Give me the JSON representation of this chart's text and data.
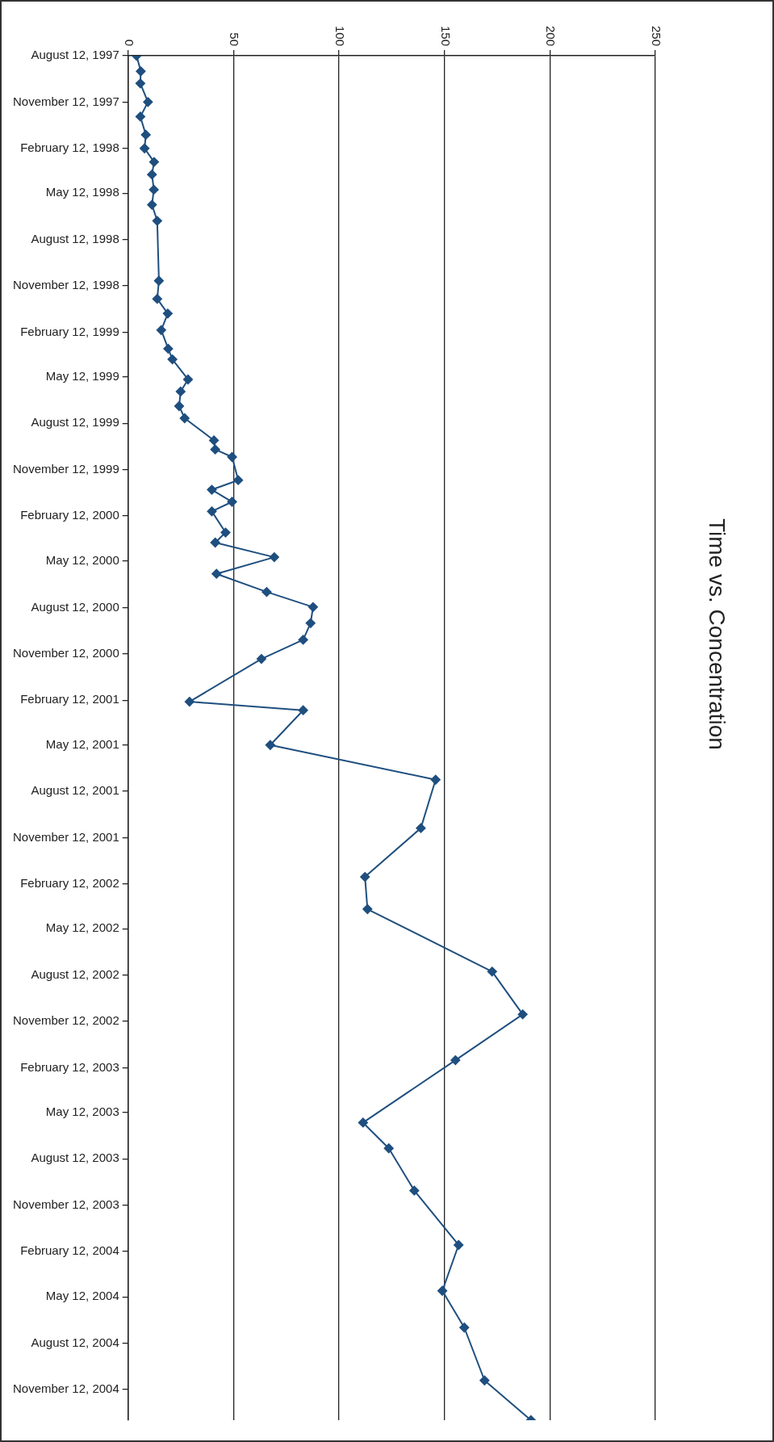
{
  "chart_data": {
    "type": "line",
    "orientation": "horizontal",
    "title": "Time vs. Concentration",
    "x": [
      "1997-08-12",
      "1997-09-12",
      "1997-10-06",
      "1997-11-12",
      "1997-12-11",
      "1998-01-16",
      "1998-02-12",
      "1998-03-11",
      "1998-04-05",
      "1998-05-05",
      "1998-06-04",
      "1998-07-06",
      "1998-11-02",
      "1998-12-08",
      "1999-01-06",
      "1999-02-08",
      "1999-03-17",
      "1999-04-07",
      "1999-05-17",
      "1999-06-10",
      "1999-07-09",
      "1999-08-02",
      "1999-09-15",
      "1999-10-03",
      "1999-10-18",
      "1999-12-03",
      "1999-12-22",
      "2000-01-15",
      "2000-02-03",
      "2000-03-16",
      "2000-04-05",
      "2000-05-04",
      "2000-06-06",
      "2000-07-12",
      "2000-08-11",
      "2000-09-12",
      "2000-10-15",
      "2000-11-22",
      "2001-02-15",
      "2001-03-04",
      "2001-05-12",
      "2001-07-20",
      "2001-10-24",
      "2002-01-29",
      "2002-04-03",
      "2002-08-05",
      "2002-10-29",
      "2003-01-28",
      "2003-06-01",
      "2003-07-22",
      "2003-10-14",
      "2004-01-30",
      "2004-04-30",
      "2004-07-12",
      "2004-10-25",
      "2005-01-12"
    ],
    "values": [
      4,
      6,
      5.8,
      9.4,
      5.8,
      8.4,
      7.8,
      12.3,
      11.3,
      12.2,
      11.3,
      13.8,
      14.6,
      13.8,
      18.8,
      15.7,
      19,
      21,
      28.4,
      24.9,
      24.2,
      26.8,
      40.7,
      41.3,
      49.3,
      52.2,
      39.7,
      49.3,
      39.7,
      46.2,
      41.3,
      69.3,
      41.9,
      65.7,
      87.7,
      86.5,
      83,
      63.2,
      29.1,
      83,
      67.4,
      145.8,
      138.8,
      112.3,
      113.5,
      172.6,
      187.1,
      155.2,
      111.4,
      123.6,
      135.7,
      156.7,
      149,
      159.4,
      169,
      191
    ],
    "color": "#1f4f7f",
    "marker": "diamond",
    "xlim": [
      0,
      250
    ],
    "xticks": [
      0,
      50,
      100,
      150,
      200,
      250
    ],
    "ylim": [
      "2005-01-12",
      "1997-08-12"
    ],
    "yticks": [
      {
        "value": "1997-08-12",
        "label": "August 12, 1997"
      },
      {
        "value": "1997-11-12",
        "label": "November 12, 1997"
      },
      {
        "value": "1998-02-12",
        "label": "February 12, 1998"
      },
      {
        "value": "1998-05-12",
        "label": "May 12, 1998"
      },
      {
        "value": "1998-08-12",
        "label": "August 12, 1998"
      },
      {
        "value": "1998-11-12",
        "label": "November 12, 1998"
      },
      {
        "value": "1999-02-12",
        "label": "February 12, 1999"
      },
      {
        "value": "1999-05-12",
        "label": "May 12, 1999"
      },
      {
        "value": "1999-08-12",
        "label": "August 12, 1999"
      },
      {
        "value": "1999-11-12",
        "label": "November 12, 1999"
      },
      {
        "value": "2000-02-12",
        "label": "February 12, 2000"
      },
      {
        "value": "2000-05-12",
        "label": "May 12, 2000"
      },
      {
        "value": "2000-08-12",
        "label": "August 12, 2000"
      },
      {
        "value": "2000-11-12",
        "label": "November 12, 2000"
      },
      {
        "value": "2001-02-12",
        "label": "February 12, 2001"
      },
      {
        "value": "2001-05-12",
        "label": "May 12, 2001"
      },
      {
        "value": "2001-08-12",
        "label": "August 12, 2001"
      },
      {
        "value": "2001-11-12",
        "label": "November 12, 2001"
      },
      {
        "value": "2002-02-12",
        "label": "February 12, 2002"
      },
      {
        "value": "2002-05-12",
        "label": "May 12, 2002"
      },
      {
        "value": "2002-08-12",
        "label": "August 12, 2002"
      },
      {
        "value": "2002-11-12",
        "label": "November 12, 2002"
      },
      {
        "value": "2003-02-12",
        "label": "February 12, 2003"
      },
      {
        "value": "2003-05-12",
        "label": "May 12, 2003"
      },
      {
        "value": "2003-08-12",
        "label": "August 12, 2003"
      },
      {
        "value": "2003-11-12",
        "label": "November 12, 2003"
      },
      {
        "value": "2004-02-12",
        "label": "February 12, 2004"
      },
      {
        "value": "2004-05-12",
        "label": "May 12, 2004"
      },
      {
        "value": "2004-08-12",
        "label": "August 12, 2004"
      },
      {
        "value": "2004-11-12",
        "label": "November 12, 2004"
      }
    ],
    "grid": "x"
  }
}
